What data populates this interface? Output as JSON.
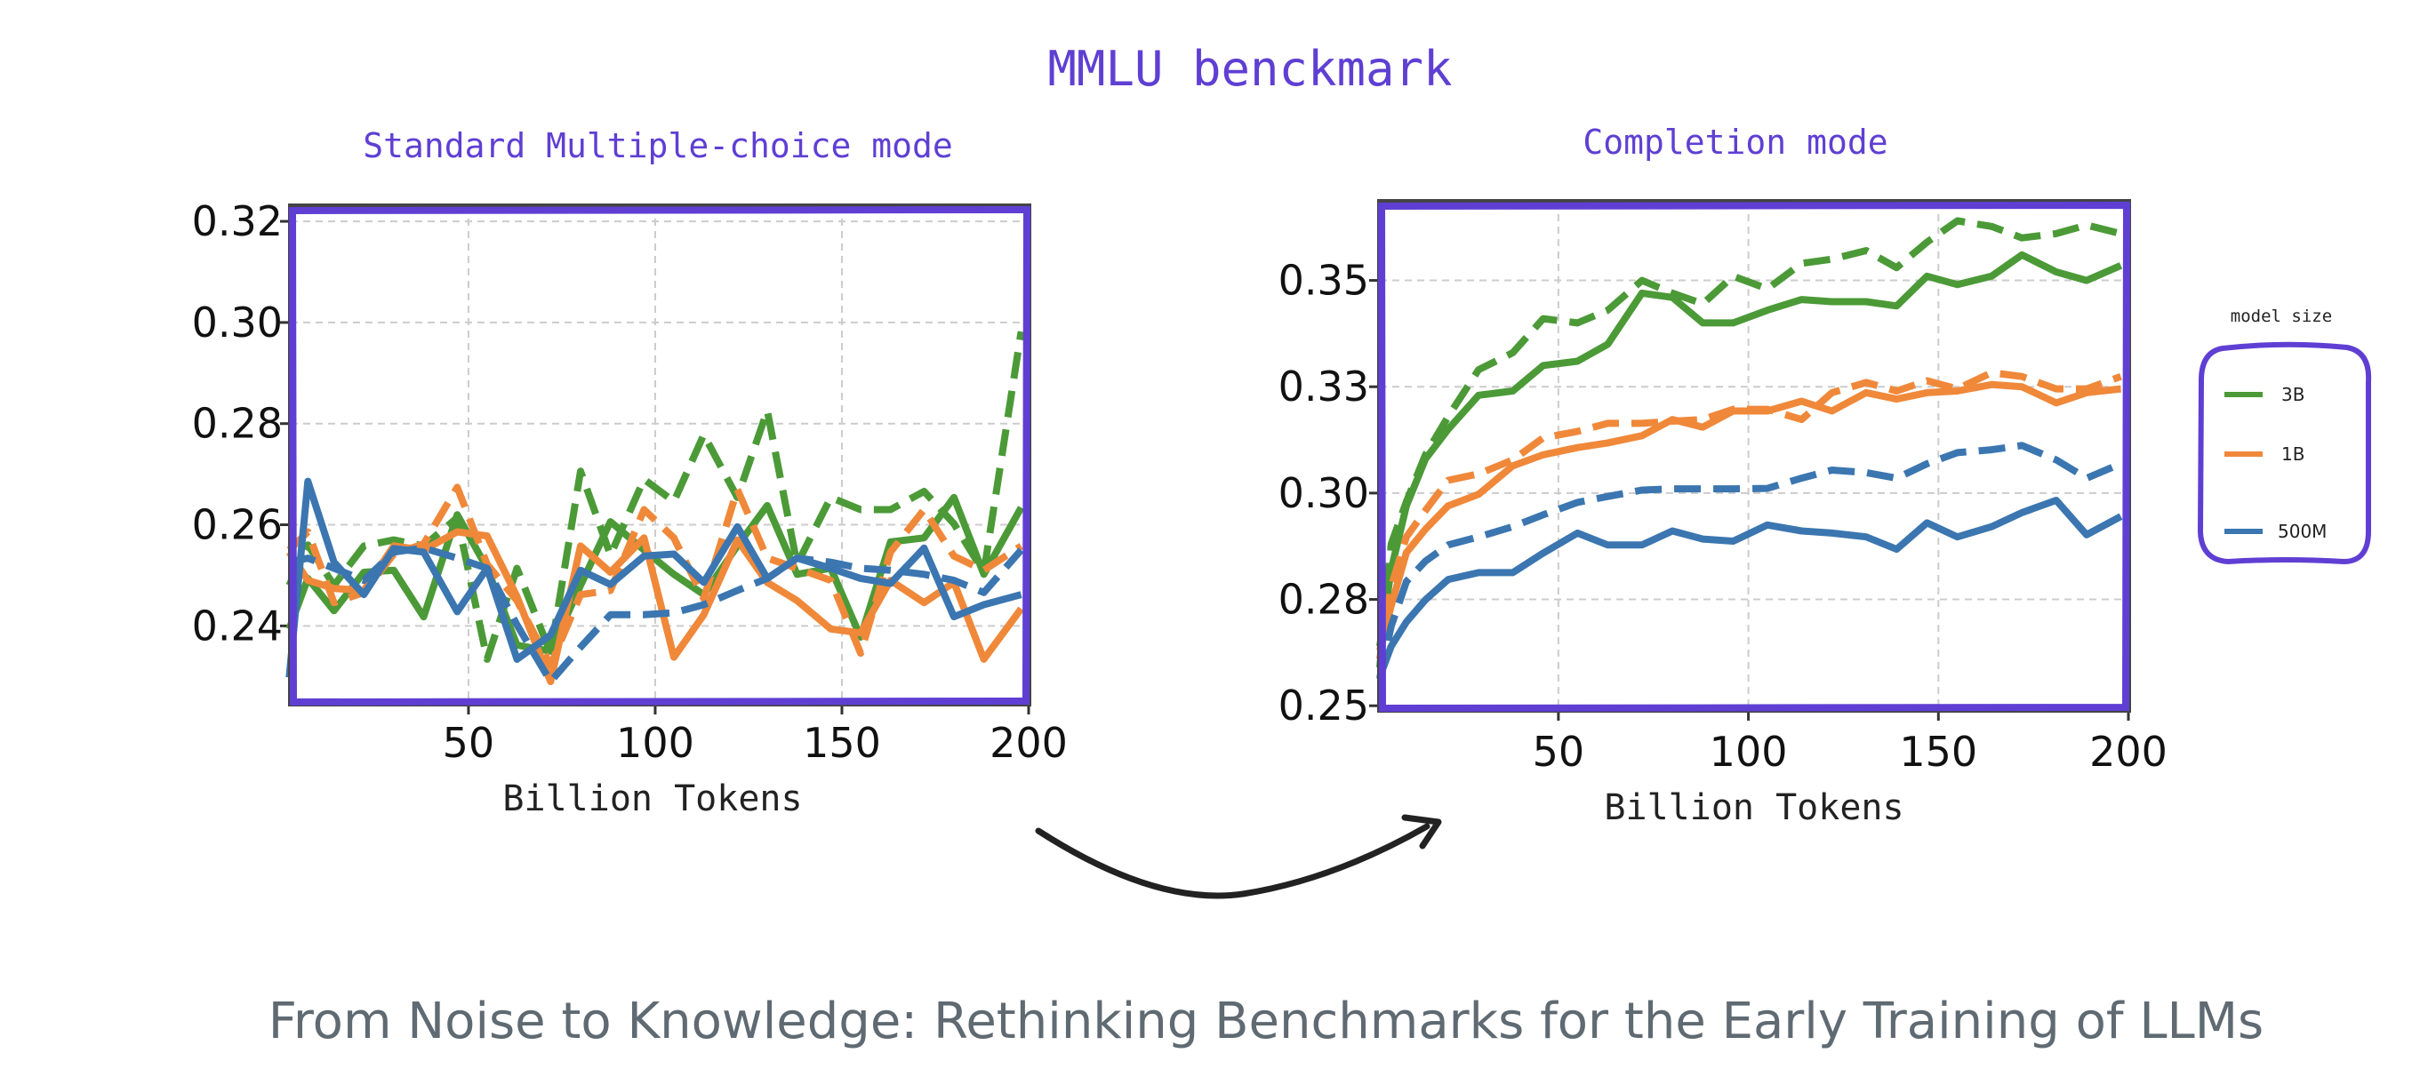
{
  "title": "MMLU benckmark",
  "caption": "From Noise to Knowledge: Rethinking Benchmarks for the Early Training of LLMs",
  "colors": {
    "accent": "#5f3fd3",
    "3B": "#4b9a37",
    "1B": "#f0883a",
    "500M": "#3b76b0",
    "caption": "#5f6a72"
  },
  "legend": {
    "title": "model size",
    "entries": [
      "3B",
      "1B",
      "500M"
    ]
  },
  "chart_data": [
    {
      "type": "line",
      "title": "Standard Multiple-choice mode",
      "xlabel": "Billion Tokens",
      "ylabel": "",
      "xlim": [
        2.4,
        200
      ],
      "ylim": [
        0.2246,
        0.323
      ],
      "xticks": [
        50,
        100,
        150,
        200
      ],
      "xtick_labels": [
        "50",
        "100",
        "150",
        "200"
      ],
      "yticks": [
        0.24,
        0.26,
        0.28,
        0.3,
        0.32
      ],
      "ytick_labels": [
        "0.24",
        "0.26",
        "0.28",
        "0.30",
        "0.32"
      ],
      "grid": true,
      "x": [
        2,
        7,
        14,
        22,
        30,
        38,
        47,
        55,
        63,
        72,
        80,
        88,
        97,
        105,
        113,
        122,
        130,
        138,
        147,
        155,
        163,
        172,
        180,
        188,
        198
      ],
      "series": [
        {
          "name": "3B",
          "style": "dashed",
          "values": [
            0.248,
            0.256,
            0.248,
            0.2558,
            0.257,
            0.2558,
            0.2614,
            0.2334,
            0.2514,
            0.2346,
            0.2706,
            0.254,
            0.269,
            0.2646,
            0.2778,
            0.2654,
            0.2826,
            0.2522,
            0.2654,
            0.263,
            0.263,
            0.2666,
            0.2602,
            0.2506,
            0.2982
          ]
        },
        {
          "name": "3B",
          "style": "solid",
          "values": [
            0.2394,
            0.2494,
            0.243,
            0.2506,
            0.251,
            0.2418,
            0.262,
            0.2514,
            0.2362,
            0.235,
            0.248,
            0.2606,
            0.255,
            0.2502,
            0.2462,
            0.2558,
            0.2638,
            0.2502,
            0.2514,
            0.2378,
            0.2566,
            0.2574,
            0.2654,
            0.2502,
            0.2634
          ]
        },
        {
          "name": "1B",
          "style": "dashed",
          "values": [
            0.255,
            0.2586,
            0.2446,
            0.2466,
            0.2542,
            0.2562,
            0.2674,
            0.2522,
            0.245,
            0.2322,
            0.2462,
            0.247,
            0.263,
            0.2574,
            0.2454,
            0.267,
            0.2534,
            0.2514,
            0.249,
            0.2346,
            0.2546,
            0.263,
            0.2538,
            0.251,
            0.2558
          ]
        },
        {
          "name": "1B",
          "style": "solid",
          "values": [
            0.2546,
            0.249,
            0.2474,
            0.247,
            0.2558,
            0.255,
            0.2586,
            0.2578,
            0.2458,
            0.229,
            0.2558,
            0.2506,
            0.2574,
            0.2338,
            0.2422,
            0.257,
            0.2486,
            0.245,
            0.2394,
            0.2386,
            0.249,
            0.2446,
            0.2486,
            0.2334,
            0.2434
          ]
        },
        {
          "name": "500M",
          "style": "dashed",
          "values": [
            0.2526,
            0.2534,
            0.2514,
            0.249,
            0.2546,
            0.2554,
            0.2534,
            0.2514,
            0.2402,
            0.229,
            0.2358,
            0.2422,
            0.2422,
            0.2426,
            0.2442,
            0.247,
            0.2494,
            0.2534,
            0.2526,
            0.2514,
            0.251,
            0.2502,
            0.249,
            0.2466,
            0.255
          ]
        },
        {
          "name": "500M",
          "style": "solid",
          "values": [
            0.2298,
            0.2686,
            0.2526,
            0.2462,
            0.2553,
            0.2546,
            0.2428,
            0.2514,
            0.2334,
            0.2382,
            0.251,
            0.2482,
            0.2538,
            0.2542,
            0.2486,
            0.2596,
            0.2494,
            0.2534,
            0.2514,
            0.2494,
            0.2484,
            0.2554,
            0.2418,
            0.2442,
            0.2462
          ]
        }
      ]
    },
    {
      "type": "line",
      "title": "Completion mode",
      "xlabel": "Billion Tokens",
      "ylabel": "",
      "xlim": [
        3,
        200
      ],
      "ylim": [
        0.249,
        0.3685
      ],
      "xticks": [
        50,
        100,
        150,
        200
      ],
      "xtick_labels": [
        "50",
        "100",
        "150",
        "200"
      ],
      "yticks": [
        0.25,
        0.275,
        0.3,
        0.325,
        0.35
      ],
      "ytick_labels": [
        "0.25",
        "0.28",
        "0.30",
        "0.33",
        "0.35"
      ],
      "grid": true,
      "legend_position": "right",
      "x": [
        3,
        6,
        10,
        15,
        21,
        29,
        38,
        46,
        55,
        63,
        72,
        80,
        88,
        96,
        105,
        114,
        122,
        131,
        139,
        147,
        155,
        164,
        172,
        181,
        189,
        198
      ],
      "series": [
        {
          "name": "3B",
          "style": "dashed",
          "values": [
            0.259,
            0.288,
            0.298,
            0.309,
            0.318,
            0.329,
            0.333,
            0.341,
            0.34,
            0.343,
            0.35,
            0.347,
            0.3445,
            0.351,
            0.348,
            0.354,
            0.355,
            0.357,
            0.353,
            0.359,
            0.364,
            0.3627,
            0.36,
            0.361,
            0.363,
            0.361
          ]
        },
        {
          "name": "3B",
          "style": "solid",
          "values": [
            0.264,
            0.282,
            0.297,
            0.308,
            0.315,
            0.323,
            0.324,
            0.33,
            0.331,
            0.335,
            0.347,
            0.346,
            0.34,
            0.34,
            0.343,
            0.3455,
            0.345,
            0.345,
            0.344,
            0.351,
            0.349,
            0.351,
            0.356,
            0.352,
            0.35,
            0.3535
          ]
        },
        {
          "name": "1B",
          "style": "dashed",
          "values": [
            0.261,
            0.278,
            0.2897,
            0.2959,
            0.303,
            0.3045,
            0.3078,
            0.313,
            0.3145,
            0.3164,
            0.3164,
            0.3169,
            0.3173,
            0.3197,
            0.3197,
            0.3173,
            0.3236,
            0.326,
            0.324,
            0.3264,
            0.3245,
            0.3283,
            0.3274,
            0.3245,
            0.3245,
            0.3274
          ]
        },
        {
          "name": "1B",
          "style": "solid",
          "values": [
            0.263,
            0.2735,
            0.286,
            0.2915,
            0.297,
            0.2997,
            0.3064,
            0.309,
            0.3107,
            0.3118,
            0.3135,
            0.3173,
            0.3155,
            0.3193,
            0.3193,
            0.3216,
            0.3193,
            0.3236,
            0.3221,
            0.3236,
            0.324,
            0.3255,
            0.325,
            0.3212,
            0.3236,
            0.3245
          ]
        },
        {
          "name": "500M",
          "style": "dashed",
          "values": [
            0.2563,
            0.2687,
            0.2792,
            0.284,
            0.2878,
            0.2897,
            0.2921,
            0.2949,
            0.2978,
            0.2992,
            0.3007,
            0.301,
            0.301,
            0.301,
            0.3011,
            0.3035,
            0.3054,
            0.3048,
            0.3035,
            0.3069,
            0.3095,
            0.3102,
            0.3112,
            0.3078,
            0.3035,
            0.3069
          ]
        },
        {
          "name": "500M",
          "style": "solid",
          "values": [
            0.2568,
            0.264,
            0.2697,
            0.2749,
            0.2797,
            0.2813,
            0.2813,
            0.2859,
            0.2906,
            0.2878,
            0.2878,
            0.2911,
            0.2892,
            0.2887,
            0.2925,
            0.2911,
            0.2906,
            0.2897,
            0.2868,
            0.293,
            0.2897,
            0.2921,
            0.2954,
            0.2983,
            0.2902,
            0.2945
          ]
        }
      ]
    }
  ]
}
